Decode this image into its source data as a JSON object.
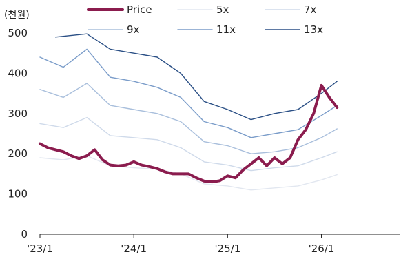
{
  "chart_data": {
    "type": "line",
    "unit_label": "(천원)",
    "title": "",
    "xlabel": "",
    "ylabel": "",
    "ylim": [
      0,
      500
    ],
    "y_ticks": [
      "0",
      "100",
      "200",
      "300",
      "400",
      "500"
    ],
    "x_ticks": [
      "'23/1",
      "'24/1",
      "'25/1",
      "'26/1"
    ],
    "x_tick_dates": [
      "2023-01",
      "2024-01",
      "2025-01",
      "2026-01"
    ],
    "xlim": [
      "2023-01",
      "2026-11"
    ],
    "grid": false,
    "legend_position": "top",
    "series": [
      {
        "name": "Price",
        "color": "#8b1c4e",
        "values": [
          {
            "x": "2023-01",
            "y": 225
          },
          {
            "x": "2023-02",
            "y": 215
          },
          {
            "x": "2023-03",
            "y": 210
          },
          {
            "x": "2023-04",
            "y": 205
          },
          {
            "x": "2023-05",
            "y": 195
          },
          {
            "x": "2023-06",
            "y": 188
          },
          {
            "x": "2023-07",
            "y": 195
          },
          {
            "x": "2023-08",
            "y": 210
          },
          {
            "x": "2023-09",
            "y": 185
          },
          {
            "x": "2023-10",
            "y": 172
          },
          {
            "x": "2023-11",
            "y": 170
          },
          {
            "x": "2023-12",
            "y": 172
          },
          {
            "x": "2024-01",
            "y": 180
          },
          {
            "x": "2024-02",
            "y": 172
          },
          {
            "x": "2024-03",
            "y": 168
          },
          {
            "x": "2024-04",
            "y": 163
          },
          {
            "x": "2024-05",
            "y": 155
          },
          {
            "x": "2024-06",
            "y": 150
          },
          {
            "x": "2024-07",
            "y": 150
          },
          {
            "x": "2024-08",
            "y": 150
          },
          {
            "x": "2024-09",
            "y": 140
          },
          {
            "x": "2024-10",
            "y": 132
          },
          {
            "x": "2024-11",
            "y": 130
          },
          {
            "x": "2024-12",
            "y": 133
          },
          {
            "x": "2025-01",
            "y": 145
          },
          {
            "x": "2025-02",
            "y": 140
          },
          {
            "x": "2025-03",
            "y": 160
          },
          {
            "x": "2025-04",
            "y": 175
          },
          {
            "x": "2025-05",
            "y": 190
          },
          {
            "x": "2025-06",
            "y": 170
          },
          {
            "x": "2025-07",
            "y": 190
          },
          {
            "x": "2025-08",
            "y": 175
          },
          {
            "x": "2025-09",
            "y": 190
          },
          {
            "x": "2025-10",
            "y": 235
          },
          {
            "x": "2025-11",
            "y": 260
          },
          {
            "x": "2025-12",
            "y": 300
          },
          {
            "x": "2026-01",
            "y": 370
          },
          {
            "x": "2026-02",
            "y": 340
          },
          {
            "x": "2026-03",
            "y": 315
          }
        ]
      },
      {
        "name": "5x",
        "color": "#e2e7f0",
        "values": [
          {
            "x": "2023-01",
            "y": 190
          },
          {
            "x": "2023-04",
            "y": 185
          },
          {
            "x": "2023-07",
            "y": 195
          },
          {
            "x": "2023-10",
            "y": 170
          },
          {
            "x": "2024-01",
            "y": 165
          },
          {
            "x": "2024-04",
            "y": 162
          },
          {
            "x": "2024-07",
            "y": 150
          },
          {
            "x": "2024-10",
            "y": 125
          },
          {
            "x": "2025-01",
            "y": 120
          },
          {
            "x": "2025-04",
            "y": 110
          },
          {
            "x": "2025-07",
            "y": 115
          },
          {
            "x": "2025-10",
            "y": 120
          },
          {
            "x": "2026-01",
            "y": 135
          },
          {
            "x": "2026-03",
            "y": 148
          }
        ]
      },
      {
        "name": "7x",
        "color": "#cfdaea",
        "values": [
          {
            "x": "2023-01",
            "y": 275
          },
          {
            "x": "2023-04",
            "y": 265
          },
          {
            "x": "2023-07",
            "y": 290
          },
          {
            "x": "2023-10",
            "y": 245
          },
          {
            "x": "2024-01",
            "y": 240
          },
          {
            "x": "2024-04",
            "y": 235
          },
          {
            "x": "2024-07",
            "y": 215
          },
          {
            "x": "2024-10",
            "y": 180
          },
          {
            "x": "2025-01",
            "y": 172
          },
          {
            "x": "2025-04",
            "y": 158
          },
          {
            "x": "2025-07",
            "y": 165
          },
          {
            "x": "2025-10",
            "y": 170
          },
          {
            "x": "2026-01",
            "y": 190
          },
          {
            "x": "2026-03",
            "y": 205
          }
        ]
      },
      {
        "name": "9x",
        "color": "#a9bfdc",
        "values": [
          {
            "x": "2023-01",
            "y": 360
          },
          {
            "x": "2023-04",
            "y": 340
          },
          {
            "x": "2023-07",
            "y": 375
          },
          {
            "x": "2023-10",
            "y": 320
          },
          {
            "x": "2024-01",
            "y": 310
          },
          {
            "x": "2024-04",
            "y": 300
          },
          {
            "x": "2024-07",
            "y": 280
          },
          {
            "x": "2024-10",
            "y": 230
          },
          {
            "x": "2025-01",
            "y": 220
          },
          {
            "x": "2025-04",
            "y": 200
          },
          {
            "x": "2025-07",
            "y": 205
          },
          {
            "x": "2025-10",
            "y": 215
          },
          {
            "x": "2026-01",
            "y": 240
          },
          {
            "x": "2026-03",
            "y": 262
          }
        ]
      },
      {
        "name": "11x",
        "color": "#7a9cc9",
        "values": [
          {
            "x": "2023-01",
            "y": 440
          },
          {
            "x": "2023-04",
            "y": 415
          },
          {
            "x": "2023-07",
            "y": 460
          },
          {
            "x": "2023-10",
            "y": 390
          },
          {
            "x": "2024-01",
            "y": 380
          },
          {
            "x": "2024-04",
            "y": 365
          },
          {
            "x": "2024-07",
            "y": 340
          },
          {
            "x": "2024-10",
            "y": 280
          },
          {
            "x": "2025-01",
            "y": 265
          },
          {
            "x": "2025-04",
            "y": 240
          },
          {
            "x": "2025-07",
            "y": 250
          },
          {
            "x": "2025-10",
            "y": 260
          },
          {
            "x": "2026-01",
            "y": 295
          },
          {
            "x": "2026-03",
            "y": 320
          }
        ]
      },
      {
        "name": "13x",
        "color": "#2a4f85",
        "values": [
          {
            "x": "2023-03",
            "y": 490
          },
          {
            "x": "2023-07",
            "y": 498
          },
          {
            "x": "2023-10",
            "y": 460
          },
          {
            "x": "2024-01",
            "y": 450
          },
          {
            "x": "2024-04",
            "y": 440
          },
          {
            "x": "2024-07",
            "y": 400
          },
          {
            "x": "2024-10",
            "y": 330
          },
          {
            "x": "2025-01",
            "y": 310
          },
          {
            "x": "2025-04",
            "y": 285
          },
          {
            "x": "2025-07",
            "y": 300
          },
          {
            "x": "2025-10",
            "y": 310
          },
          {
            "x": "2026-01",
            "y": 350
          },
          {
            "x": "2026-03",
            "y": 380
          }
        ]
      }
    ]
  }
}
